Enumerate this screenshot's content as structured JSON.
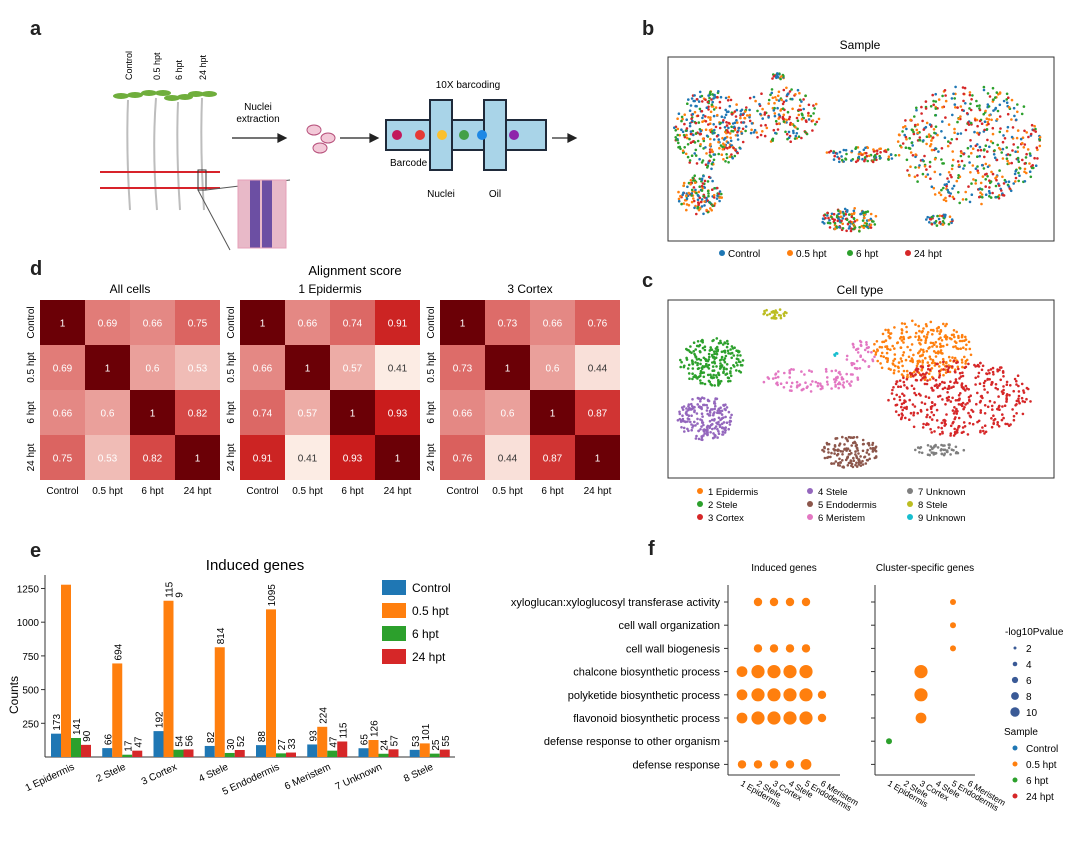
{
  "panels": {
    "a": "a",
    "b": "b",
    "c": "c",
    "d": "d",
    "e": "e",
    "f": "f"
  },
  "panel_a": {
    "plants": [
      "Control",
      "0.5 hpt",
      "6 hpt",
      "24 hpt"
    ],
    "nuclei_extraction": [
      "Nuclei",
      "extraction"
    ],
    "barcoding_title": "10X barcoding",
    "barcode_label": "Barcode",
    "nuclei_label": "Nuclei",
    "oil_label": "Oil",
    "colors": {
      "stem": "#bbbbbb",
      "leaf": "#6fae3c",
      "red_line": "#d8232a",
      "chip": "#a9d4e8",
      "chip_dark": "#1f2a3a"
    }
  },
  "chart_data": [
    {
      "id": "b",
      "type": "scatter",
      "title": "Sample",
      "legend": [
        "Control",
        "0.5 hpt",
        "6 hpt",
        "24 hpt"
      ],
      "colors": [
        "#1f77b4",
        "#ff7f0e",
        "#2ca02c",
        "#d62728"
      ],
      "legend_placement": "bottom"
    },
    {
      "id": "c",
      "type": "scatter",
      "title": "Cell type",
      "legend": [
        "1 Epidermis",
        "2 Stele",
        "3 Cortex",
        "4 Stele",
        "5 Endodermis",
        "6 Meristem",
        "7 Unknown",
        "8 Stele",
        "9 Unknown"
      ],
      "colors": [
        "#ff7f0e",
        "#2ca02c",
        "#d62728",
        "#9467bd",
        "#8c564b",
        "#e377c2",
        "#7f7f7f",
        "#bcbd22",
        "#17becf"
      ],
      "legend_placement": "bottom"
    },
    {
      "id": "d",
      "type": "heatmap",
      "title": "Alignment score",
      "labels": [
        "Control",
        "0.5 hpt",
        "6 hpt",
        "24 hpt"
      ],
      "matrices": [
        {
          "name": "All cells",
          "values": [
            [
              1,
              0.69,
              0.66,
              0.75
            ],
            [
              0.69,
              1,
              0.6,
              0.53
            ],
            [
              0.66,
              0.6,
              1,
              0.82
            ],
            [
              0.75,
              0.53,
              0.82,
              1
            ]
          ]
        },
        {
          "name": "1 Epidermis",
          "values": [
            [
              1,
              0.66,
              0.74,
              0.91
            ],
            [
              0.66,
              1,
              0.57,
              0.41
            ],
            [
              0.74,
              0.57,
              1,
              0.93
            ],
            [
              0.91,
              0.41,
              0.93,
              1
            ]
          ]
        },
        {
          "name": "3 Cortex",
          "values": [
            [
              1,
              0.73,
              0.66,
              0.76
            ],
            [
              0.73,
              1,
              0.6,
              0.44
            ],
            [
              0.66,
              0.6,
              1,
              0.87
            ],
            [
              0.76,
              0.44,
              0.87,
              1
            ]
          ]
        }
      ]
    },
    {
      "id": "e",
      "type": "bar",
      "title": "Induced genes",
      "ylabel": "Counts",
      "xlabel": "",
      "ylim": [
        0,
        1350
      ],
      "yticks": [
        250,
        500,
        750,
        1000,
        1250
      ],
      "categories": [
        "1 Epidermis",
        "2 Stele",
        "3 Cortex",
        "4 Stele",
        "5 Endodermis",
        "6 Meristem",
        "7 Unknown",
        "8 Stele"
      ],
      "series": [
        {
          "name": "Control",
          "color": "#1f77b4",
          "values": [
            173,
            66,
            192,
            82,
            88,
            93,
            65,
            53
          ],
          "labels": [
            "173",
            "66",
            "192",
            "82",
            "88",
            "93",
            "65",
            "53"
          ]
        },
        {
          "name": "0.5 hpt",
          "color": "#ff7f0e",
          "values": [
            1278,
            694,
            1159,
            814,
            1095,
            224,
            126,
            101
          ],
          "labels": [
            "",
            "694",
            "115\n9",
            "814",
            "1095",
            "224",
            "126",
            "101"
          ]
        },
        {
          "name": "6 hpt",
          "color": "#2ca02c",
          "values": [
            141,
            17,
            54,
            30,
            27,
            47,
            24,
            25
          ],
          "labels": [
            "141",
            "17",
            "54",
            "30",
            "27",
            "47",
            "24",
            "25"
          ]
        },
        {
          "name": "24 hpt",
          "color": "#d62728",
          "values": [
            90,
            47,
            56,
            52,
            33,
            115,
            57,
            55
          ],
          "labels": [
            "90",
            "47",
            "56",
            "52",
            "33",
            "115",
            "57",
            "55"
          ]
        }
      ],
      "legend_placement": "top-right"
    },
    {
      "id": "f",
      "type": "scatter",
      "subplots": [
        "Induced genes",
        "Cluster-specific genes"
      ],
      "terms": [
        "xyloglucan:xyloglucosyl transferase activity",
        "cell wall organization",
        "cell wall biogenesis",
        "chalcone biosynthetic process",
        "polyketide biosynthetic process",
        "flavonoid biosynthetic process",
        "defense response to other organism",
        "defense response"
      ],
      "x": [
        "1 Epidermis",
        "2 Stele",
        "3 Cortex",
        "4 Stele",
        "5 Endodermis",
        "6 Meristem"
      ],
      "induced_points": [
        {
          "term": 0,
          "clusters": [
            2,
            3,
            4,
            5
          ],
          "size": [
            2,
            2,
            2,
            2
          ]
        },
        {
          "term": 2,
          "clusters": [
            2,
            3,
            4,
            5
          ],
          "size": [
            2,
            2,
            2,
            2
          ]
        },
        {
          "term": 3,
          "clusters": [
            1,
            2,
            3,
            4,
            5
          ],
          "size": [
            3,
            4,
            4,
            4,
            4
          ]
        },
        {
          "term": 4,
          "clusters": [
            1,
            2,
            3,
            4,
            5,
            6
          ],
          "size": [
            3,
            4,
            4,
            4,
            4,
            2
          ]
        },
        {
          "term": 5,
          "clusters": [
            1,
            2,
            3,
            4,
            5,
            6
          ],
          "size": [
            3,
            4,
            4,
            4,
            4,
            2
          ]
        },
        {
          "term": 7,
          "clusters": [
            1,
            2,
            3,
            4,
            5
          ],
          "size": [
            2,
            2,
            2,
            2,
            3
          ]
        }
      ],
      "cluster_points": [
        {
          "term": 0,
          "cluster": 5,
          "size": 1,
          "sample": "0.5 hpt"
        },
        {
          "term": 1,
          "cluster": 5,
          "size": 1,
          "sample": "0.5 hpt"
        },
        {
          "term": 2,
          "cluster": 5,
          "size": 1,
          "sample": "0.5 hpt"
        },
        {
          "term": 3,
          "cluster": 3,
          "size": 4,
          "sample": "0.5 hpt"
        },
        {
          "term": 4,
          "cluster": 3,
          "size": 4,
          "sample": "0.5 hpt"
        },
        {
          "term": 5,
          "cluster": 3,
          "size": 3,
          "sample": "0.5 hpt"
        },
        {
          "term": 6,
          "cluster": 1,
          "size": 1,
          "sample": "6 hpt"
        }
      ],
      "size_legend_title": "-log10Pvalue",
      "size_legend": [
        "2",
        "4",
        "6",
        "8",
        "10"
      ],
      "sample_legend_title": "Sample",
      "sample_legend": [
        "Control",
        "0.5 hpt",
        "6 hpt",
        "24 hpt"
      ],
      "sample_colors": [
        "#1f77b4",
        "#ff7f0e",
        "#2ca02c",
        "#d62728"
      ]
    }
  ]
}
